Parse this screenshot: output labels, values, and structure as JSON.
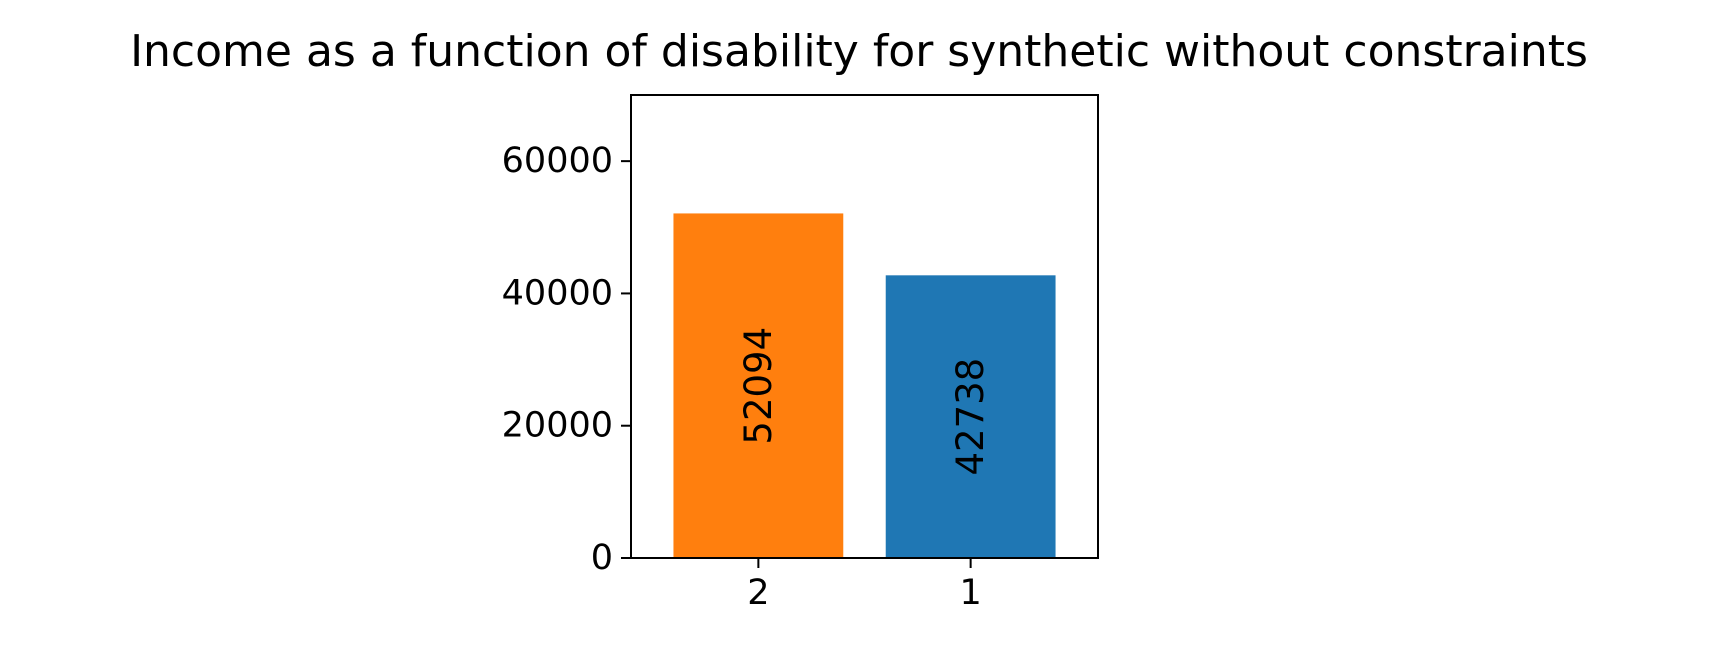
{
  "chart_data": {
    "type": "bar",
    "title": "Income as a function of disability for synthetic without constraints",
    "xlabel": "",
    "ylabel": "",
    "categories": [
      "2",
      "1"
    ],
    "values": [
      52094,
      42738
    ],
    "data_labels": [
      "52094",
      "42738"
    ],
    "bar_colors": [
      "#ff7f0e",
      "#1f77b4"
    ],
    "ylim": [
      0,
      70000
    ],
    "yticks": [
      0,
      20000,
      40000,
      60000
    ],
    "ytick_labels": [
      "0",
      "20000",
      "40000",
      "60000"
    ],
    "grid": false,
    "legend": "none"
  }
}
